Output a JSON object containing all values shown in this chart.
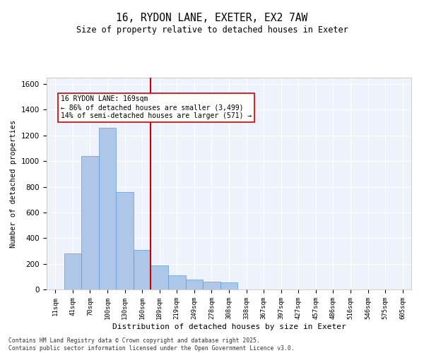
{
  "title1": "16, RYDON LANE, EXETER, EX2 7AW",
  "title2": "Size of property relative to detached houses in Exeter",
  "xlabel": "Distribution of detached houses by size in Exeter",
  "ylabel": "Number of detached properties",
  "bar_color": "#aec6e8",
  "bar_edge_color": "#5b9bd5",
  "vline_color": "#cc0000",
  "annotation_text": "16 RYDON LANE: 169sqm\n← 86% of detached houses are smaller (3,499)\n14% of semi-detached houses are larger (571) →",
  "categories": [
    "11sqm",
    "41sqm",
    "70sqm",
    "100sqm",
    "130sqm",
    "160sqm",
    "189sqm",
    "219sqm",
    "249sqm",
    "278sqm",
    "308sqm",
    "338sqm",
    "367sqm",
    "397sqm",
    "427sqm",
    "457sqm",
    "486sqm",
    "516sqm",
    "546sqm",
    "575sqm",
    "605sqm"
  ],
  "values": [
    0,
    280,
    1040,
    1260,
    760,
    310,
    185,
    110,
    75,
    60,
    55,
    0,
    0,
    0,
    0,
    0,
    0,
    0,
    0,
    0,
    0
  ],
  "ylim": [
    0,
    1650
  ],
  "yticks": [
    0,
    200,
    400,
    600,
    800,
    1000,
    1200,
    1400,
    1600
  ],
  "bg_color": "#edf2fb",
  "grid_color": "#ffffff",
  "footer": "Contains HM Land Registry data © Crown copyright and database right 2025.\nContains public sector information licensed under the Open Government Licence v3.0.",
  "fig_bg": "#ffffff",
  "vline_idx": 5.5
}
